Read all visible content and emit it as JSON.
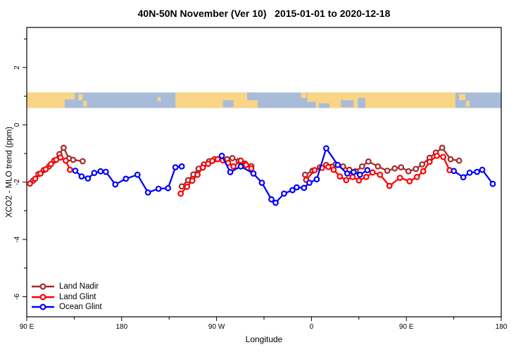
{
  "header": {
    "title": "40N-50N November (Ver 10)   2015-01-01 to 2020-12-18"
  },
  "chart_data": {
    "type": "line",
    "title": "40N-50N November (Ver 10)   2015-01-01 to 2020-12-18",
    "xlabel": "Longitude",
    "ylabel": "XCO2 - MLO trend (ppm)",
    "axis": {
      "xlim": [
        90,
        540
      ],
      "ylim": [
        -6.7,
        3.4
      ],
      "x_major_ticks": [
        {
          "value": 90,
          "label": "90 E"
        },
        {
          "value": 180,
          "label": "180"
        },
        {
          "value": 270,
          "label": "90 W"
        },
        {
          "value": 360,
          "label": "0"
        },
        {
          "value": 450,
          "label": "90 E"
        },
        {
          "value": 540,
          "label": "180"
        }
      ],
      "x_minor_ticks": [
        135,
        225,
        315,
        405,
        495
      ],
      "y_major_ticks": [
        {
          "value": 2,
          "label": "2"
        },
        {
          "value": 0,
          "label": "0"
        },
        {
          "value": -2,
          "label": "-2"
        },
        {
          "value": -4,
          "label": "-4"
        },
        {
          "value": -6,
          "label": "-6"
        }
      ],
      "y_minor_ticks": [
        3,
        1,
        -1,
        -3,
        -5
      ],
      "grid": false
    },
    "legend": {
      "position": "bottom-left",
      "items": [
        {
          "label": "Land Nadir",
          "color": "#A52A2A"
        },
        {
          "label": "Land Glint",
          "color": "#FF0000"
        },
        {
          "label": "Ocean Glint",
          "color": "#0000FF"
        }
      ]
    },
    "series": [
      {
        "name": "Land Nadir",
        "color": "#A52A2A",
        "marker": "open-circle",
        "segments": [
          [
            [
              96,
              -1.95
            ],
            [
              101,
              -1.72
            ],
            [
              106,
              -1.58
            ],
            [
              111,
              -1.45
            ],
            [
              116,
              -1.25
            ],
            [
              121,
              -1.02
            ],
            [
              125,
              -0.8
            ],
            [
              130,
              -1.17
            ],
            [
              134,
              -1.22
            ],
            [
              143,
              -1.27
            ]
          ],
          [
            [
              237,
              -2.15
            ],
            [
              243,
              -1.93
            ],
            [
              248,
              -1.73
            ],
            [
              253,
              -1.53
            ],
            [
              258,
              -1.38
            ],
            [
              263,
              -1.27
            ],
            [
              268,
              -1.2
            ],
            [
              274,
              -1.17
            ],
            [
              280,
              -1.2
            ],
            [
              285,
              -1.16
            ],
            [
              291,
              -1.26
            ],
            [
              297,
              -1.35
            ],
            [
              303,
              -1.44
            ]
          ],
          [
            [
              354,
              -1.74
            ],
            [
              361,
              -1.6
            ],
            [
              368,
              -1.48
            ],
            [
              374,
              -1.4
            ],
            [
              383,
              -1.38
            ],
            [
              390,
              -1.45
            ],
            [
              396,
              -1.57
            ],
            [
              402,
              -1.62
            ],
            [
              408,
              -1.45
            ],
            [
              414,
              -1.28
            ],
            [
              423,
              -1.45
            ],
            [
              432,
              -1.6
            ],
            [
              439,
              -1.52
            ],
            [
              445,
              -1.48
            ],
            [
              452,
              -1.62
            ],
            [
              459,
              -1.54
            ],
            [
              465,
              -1.38
            ],
            [
              472,
              -1.15
            ],
            [
              478,
              -0.97
            ],
            [
              484,
              -0.8
            ],
            [
              492,
              -1.2
            ],
            [
              500,
              -1.25
            ]
          ]
        ]
      },
      {
        "name": "Land Glint",
        "color": "#FF0000",
        "marker": "open-circle",
        "segments": [
          [
            [
              93,
              -2.05
            ],
            [
              98,
              -1.88
            ],
            [
              103,
              -1.7
            ],
            [
              108,
              -1.55
            ],
            [
              113,
              -1.37
            ],
            [
              118,
              -1.22
            ],
            [
              122,
              -1.14
            ],
            [
              127,
              -1.25
            ],
            [
              131,
              -1.57
            ]
          ],
          [
            [
              236,
              -2.4
            ],
            [
              242,
              -2.16
            ],
            [
              247,
              -1.95
            ],
            [
              252,
              -1.74
            ],
            [
              257,
              -1.49
            ],
            [
              262,
              -1.36
            ],
            [
              266,
              -1.26
            ],
            [
              271,
              -1.2
            ],
            [
              276,
              -1.24
            ],
            [
              281,
              -1.33
            ],
            [
              286,
              -1.45
            ],
            [
              293,
              -1.25
            ],
            [
              298,
              -1.4
            ],
            [
              303,
              -1.52
            ]
          ],
          [
            [
              355,
              -1.92
            ],
            [
              363,
              -1.58
            ],
            [
              370,
              -1.5
            ],
            [
              376,
              -1.47
            ],
            [
              381,
              -1.57
            ],
            [
              387,
              -1.8
            ],
            [
              393,
              -1.93
            ],
            [
              399,
              -1.82
            ],
            [
              405,
              -1.94
            ],
            [
              412,
              -1.82
            ],
            [
              418,
              -1.66
            ],
            [
              425,
              -1.74
            ],
            [
              434,
              -2.13
            ],
            [
              444,
              -1.85
            ],
            [
              453,
              -1.97
            ],
            [
              460,
              -1.82
            ],
            [
              466,
              -1.62
            ],
            [
              472,
              -1.29
            ],
            [
              479,
              -1.08
            ],
            [
              485,
              -1.12
            ],
            [
              491,
              -1.58
            ]
          ]
        ]
      },
      {
        "name": "Ocean Glint",
        "color": "#0000FF",
        "marker": "open-circle",
        "segments": [
          [
            [
              136,
              -1.6
            ],
            [
              142,
              -1.8
            ],
            [
              148,
              -1.87
            ],
            [
              154,
              -1.68
            ],
            [
              160,
              -1.62
            ],
            [
              165,
              -1.64
            ],
            [
              174,
              -2.08
            ],
            [
              184,
              -1.88
            ],
            [
              195,
              -1.74
            ],
            [
              205,
              -2.36
            ],
            [
              215,
              -2.23
            ],
            [
              224,
              -2.21
            ],
            [
              231,
              -1.48
            ],
            [
              237,
              -1.45
            ]
          ],
          [
            [
              275,
              -1.08
            ],
            [
              283,
              -1.65
            ],
            [
              293,
              -1.45
            ],
            [
              305,
              -1.7
            ],
            [
              313,
              -2.02
            ],
            [
              322,
              -2.6
            ],
            [
              326,
              -2.72
            ],
            [
              334,
              -2.4
            ],
            [
              342,
              -2.28
            ],
            [
              346,
              -2.18
            ],
            [
              353,
              -2.2
            ],
            [
              358,
              -2.02
            ],
            [
              365,
              -1.9
            ],
            [
              374,
              -0.82
            ],
            [
              385,
              -1.4
            ],
            [
              394,
              -1.7
            ],
            [
              400,
              -1.65
            ],
            [
              406,
              -1.74
            ],
            [
              413,
              -1.58
            ]
          ],
          [
            [
              495,
              -1.61
            ],
            [
              504,
              -1.83
            ],
            [
              510,
              -1.67
            ],
            [
              517,
              -1.64
            ],
            [
              522,
              -1.57
            ],
            [
              532,
              -2.06
            ]
          ]
        ]
      }
    ],
    "map_strip": {
      "description": "world coastline band 40N-50N drawn across plot",
      "value_range": [
        0.59,
        1.13
      ],
      "ocean_color": "#A8BCD9",
      "land_color": "#FAD585",
      "land_segments": [
        [
          90,
          135.5
        ],
        [
          231,
          309
        ],
        [
          356,
          496.5
        ]
      ],
      "water_patches": [
        [
          126,
          135.5,
          0.45,
          1
        ],
        [
          276,
          286,
          0.5,
          0.95
        ],
        [
          299,
          309,
          0,
          0.5
        ],
        [
          356,
          364,
          0.6,
          1
        ],
        [
          367,
          377,
          0.7,
          1
        ],
        [
          388,
          400,
          0.5,
          0.95
        ],
        [
          404,
          411,
          0.35,
          1
        ]
      ],
      "islands": [
        [
          139,
          143,
          0.1,
          0.5
        ],
        [
          143.5,
          147,
          0.55,
          0.9
        ],
        [
          214,
          217,
          0.3,
          0.55
        ],
        [
          350,
          355,
          0,
          0.35
        ],
        [
          500,
          506,
          0.1,
          0.5
        ],
        [
          506.5,
          510,
          0.55,
          0.9
        ]
      ]
    }
  }
}
